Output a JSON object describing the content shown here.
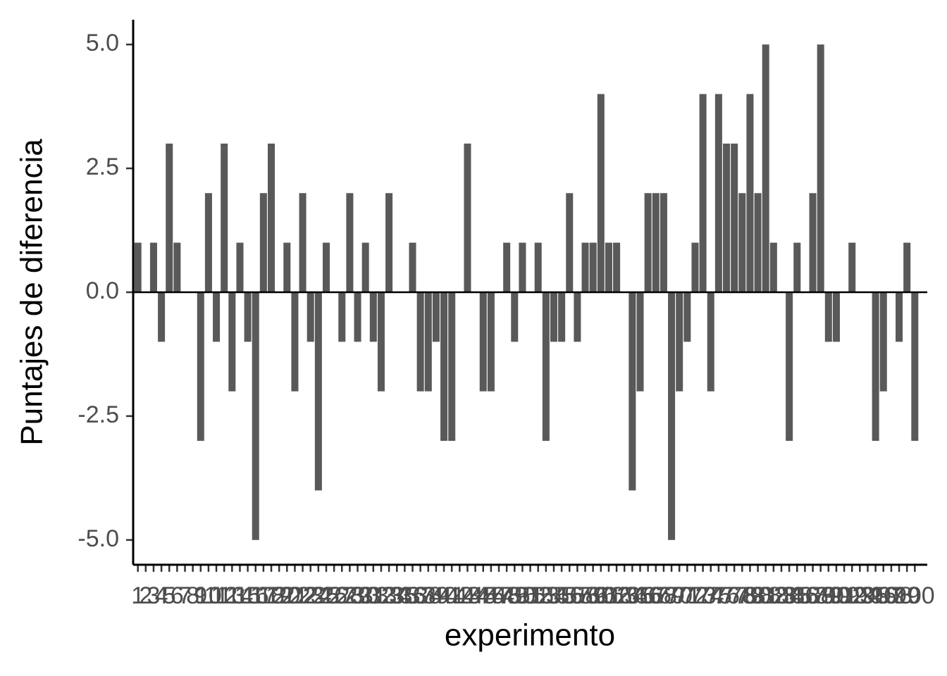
{
  "chart_data": {
    "type": "bar",
    "xlabel": "experimento",
    "ylabel": "Puntajes de diferencia",
    "categories": [
      "1",
      "2",
      "3",
      "4",
      "5",
      "6",
      "7",
      "8",
      "9",
      "10",
      "11",
      "12",
      "13",
      "14",
      "15",
      "16",
      "17",
      "18",
      "19",
      "20",
      "21",
      "22",
      "23",
      "24",
      "25",
      "26",
      "27",
      "28",
      "29",
      "30",
      "31",
      "32",
      "33",
      "34",
      "35",
      "36",
      "37",
      "38",
      "39",
      "40",
      "41",
      "42",
      "43",
      "44",
      "45",
      "46",
      "47",
      "48",
      "49",
      "50",
      "51",
      "52",
      "53",
      "54",
      "55",
      "56",
      "57",
      "58",
      "59",
      "60",
      "61",
      "62",
      "63",
      "64",
      "65",
      "66",
      "67",
      "68",
      "69",
      "70",
      "71",
      "72",
      "73",
      "74",
      "75",
      "76",
      "77",
      "78",
      "79",
      "80",
      "81",
      "82",
      "83",
      "84",
      "85",
      "86",
      "87",
      "88",
      "89",
      "90",
      "91",
      "92",
      "93",
      "94",
      "95",
      "96",
      "97",
      "98",
      "99",
      "100"
    ],
    "values": [
      1,
      0,
      1,
      -1,
      3,
      1,
      0,
      0,
      -3,
      2,
      -1,
      3,
      -2,
      1,
      -1,
      -5,
      2,
      3,
      0,
      1,
      -2,
      2,
      -1,
      -4,
      1,
      0,
      -1,
      2,
      -1,
      1,
      -1,
      -2,
      2,
      0,
      0,
      1,
      -2,
      -2,
      -1,
      -3,
      -3,
      0,
      3,
      0,
      -2,
      -2,
      0,
      1,
      -1,
      1,
      0,
      1,
      -3,
      -1,
      -1,
      2,
      -1,
      1,
      1,
      4,
      1,
      1,
      0,
      -4,
      -2,
      2,
      2,
      2,
      -5,
      -2,
      -1,
      1,
      4,
      -2,
      4,
      3,
      3,
      2,
      4,
      2,
      5,
      1,
      0,
      -3,
      1,
      0,
      2,
      5,
      -1,
      -1,
      0,
      1,
      0,
      0,
      -3,
      -2,
      0,
      -1,
      1,
      -3
    ],
    "color": "#595959",
    "ylim": [
      -5.5,
      5.5
    ],
    "yticks": [
      {
        "value": -5,
        "label": "-5.0"
      },
      {
        "value": -2.5,
        "label": "-2.5"
      },
      {
        "value": 0,
        "label": "0.0"
      },
      {
        "value": 2.5,
        "label": "2.5"
      },
      {
        "value": 5,
        "label": "5.0"
      }
    ],
    "zero_line": true
  }
}
